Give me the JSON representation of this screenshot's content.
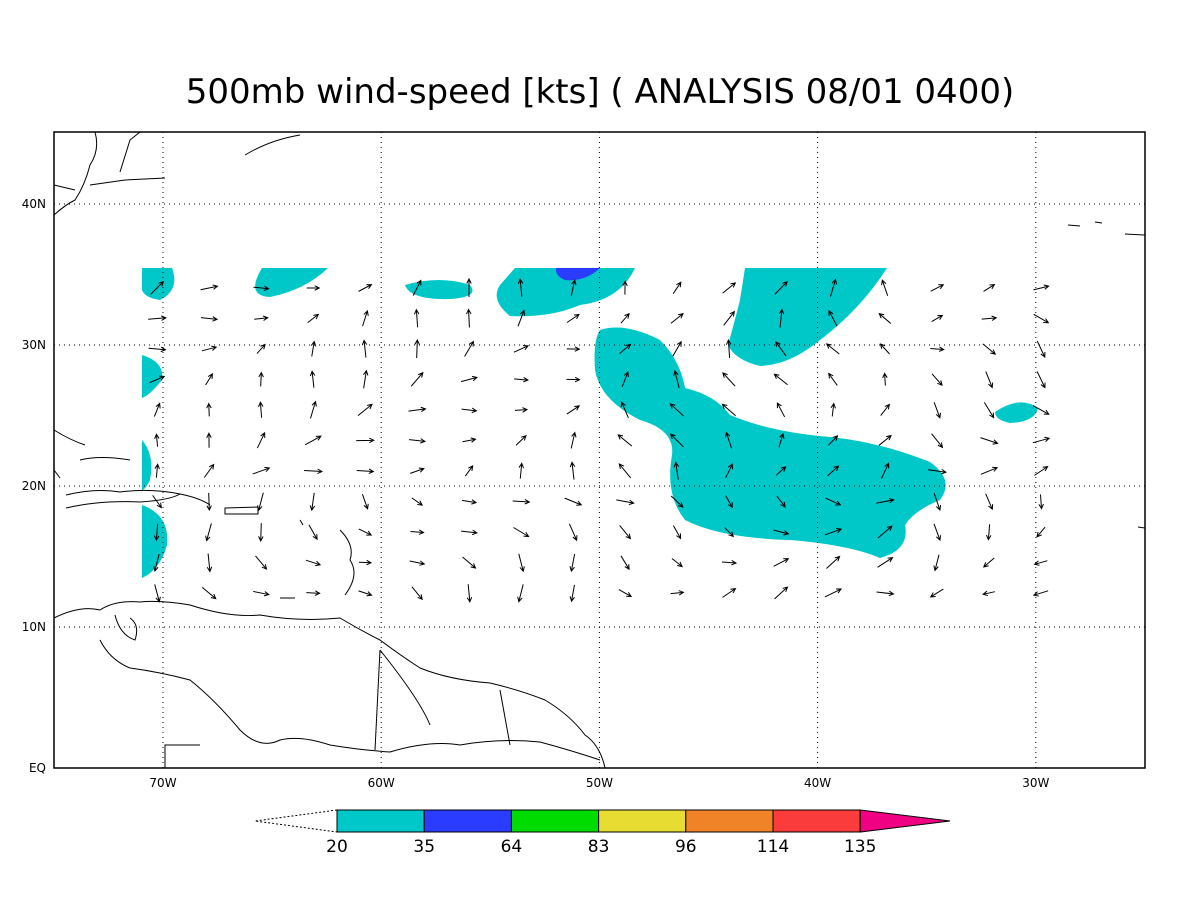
{
  "title": "500mb wind-speed [kts] ( ANALYSIS 08/01 0400)",
  "x_axis": {
    "labels": [
      "70W",
      "60W",
      "50W",
      "40W",
      "30W"
    ]
  },
  "y_axis": {
    "labels": [
      "EQ",
      "10N",
      "20N",
      "30N",
      "40N"
    ]
  },
  "colorbar": {
    "levels": [
      20,
      35,
      64,
      83,
      96,
      114,
      135
    ],
    "colors": [
      "#00c8c8",
      "#2a3cff",
      "#00dc00",
      "#e6dc32",
      "#f08228",
      "#fa3c3c",
      "#f00082"
    ]
  }
}
